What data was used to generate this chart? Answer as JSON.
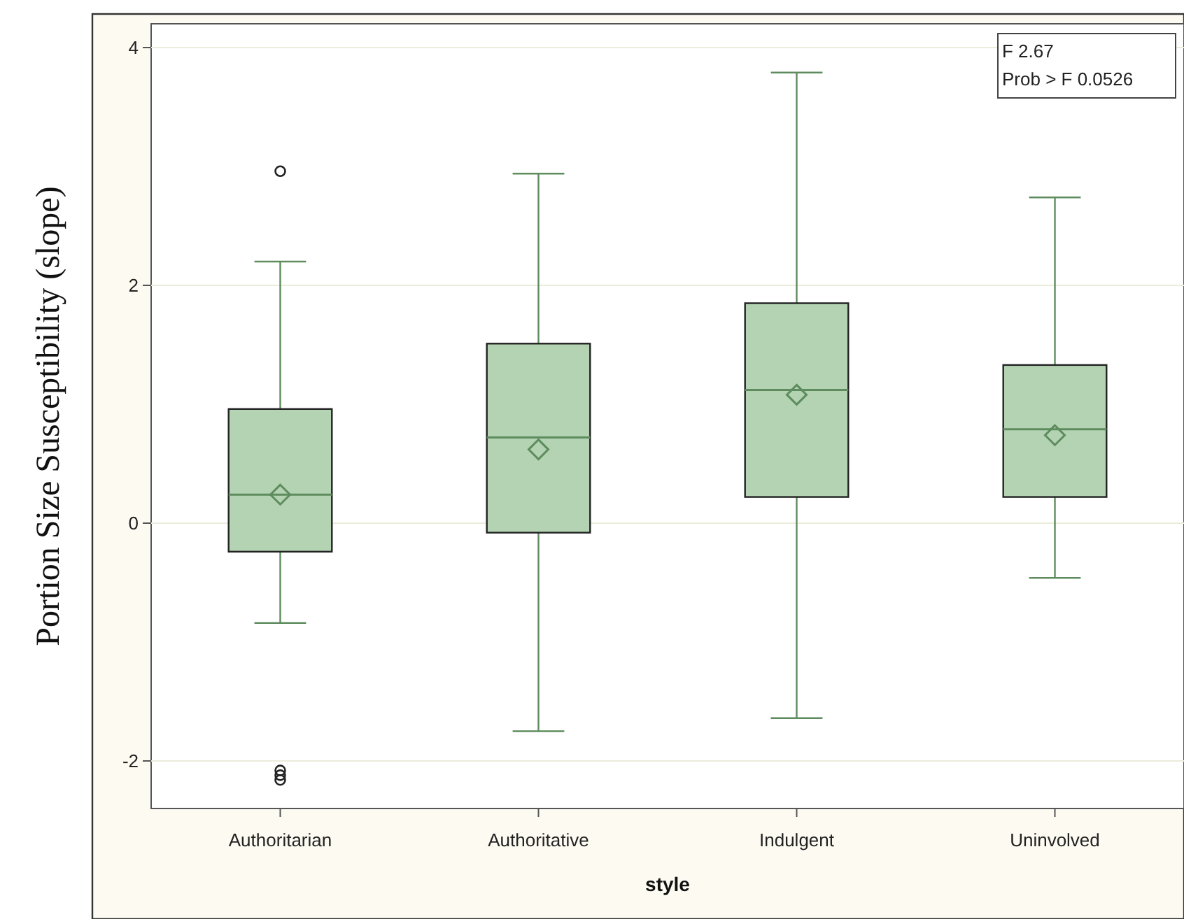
{
  "chart_data": {
    "type": "box",
    "xlabel": "style",
    "ylabel": "Portion Size Susceptibility (slope)",
    "categories": [
      "Authoritarian",
      "Authoritative",
      "Indulgent",
      "Uninvolved"
    ],
    "boxes": [
      {
        "low": -0.84,
        "q1": -0.24,
        "median": 0.24,
        "q3": 0.96,
        "high": 2.2,
        "mean": 0.24,
        "outliers": [
          2.96,
          -2.08,
          -2.12,
          -2.16
        ]
      },
      {
        "low": -1.75,
        "q1": -0.08,
        "median": 0.72,
        "q3": 1.51,
        "high": 2.94,
        "mean": 0.62
      },
      {
        "low": -1.64,
        "q1": 0.22,
        "median": 1.12,
        "q3": 1.85,
        "high": 3.79,
        "mean": 1.08
      },
      {
        "low": -0.46,
        "q1": 0.22,
        "median": 0.79,
        "q3": 1.33,
        "high": 2.74,
        "mean": 0.74
      }
    ],
    "color": "#b3d3b3",
    "ylim": [
      -2.4,
      4.2
    ],
    "yticks": [
      -2,
      0,
      2,
      4
    ],
    "grid": "y",
    "marker": "diamond",
    "annotations": [
      "F 2.67",
      "Prob > F 0.0526"
    ]
  }
}
